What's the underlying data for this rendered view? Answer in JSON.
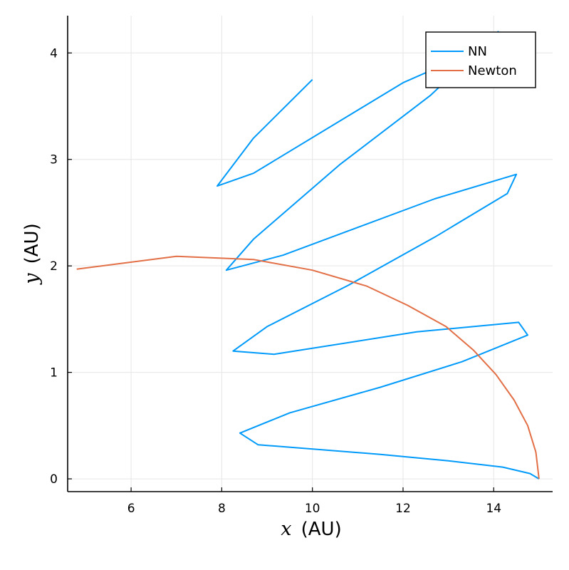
{
  "chart_data": {
    "type": "line",
    "xlabel_var": "x",
    "xlabel_unit": "(AU)",
    "ylabel_var": "y",
    "ylabel_unit": "(AU)",
    "xlim": [
      4.6,
      15.3
    ],
    "ylim": [
      -0.12,
      4.35
    ],
    "xticks": [
      6,
      8,
      10,
      12,
      14
    ],
    "yticks": [
      0,
      1,
      2,
      3,
      4
    ],
    "grid": true,
    "legend_position": "top-right",
    "series": [
      {
        "name": "NN",
        "color": "#009AFA",
        "points": [
          [
            15.0,
            0.0
          ],
          [
            14.8,
            0.05
          ],
          [
            14.2,
            0.11
          ],
          [
            13.0,
            0.17
          ],
          [
            11.5,
            0.23
          ],
          [
            8.8,
            0.32
          ],
          [
            8.4,
            0.43
          ],
          [
            9.5,
            0.62
          ],
          [
            11.5,
            0.86
          ],
          [
            13.3,
            1.1
          ],
          [
            14.75,
            1.35
          ],
          [
            14.55,
            1.47
          ],
          [
            12.3,
            1.38
          ],
          [
            9.15,
            1.17
          ],
          [
            8.25,
            1.2
          ],
          [
            9.0,
            1.43
          ],
          [
            10.8,
            1.82
          ],
          [
            12.7,
            2.27
          ],
          [
            14.3,
            2.68
          ],
          [
            14.5,
            2.86
          ],
          [
            12.7,
            2.63
          ],
          [
            9.35,
            2.1
          ],
          [
            8.1,
            1.96
          ],
          [
            8.7,
            2.25
          ],
          [
            10.6,
            2.95
          ],
          [
            12.6,
            3.6
          ],
          [
            14.1,
            4.2
          ],
          [
            13.6,
            4.02
          ],
          [
            12.0,
            3.72
          ],
          [
            8.7,
            2.87
          ],
          [
            7.9,
            2.75
          ],
          [
            8.7,
            3.2
          ],
          [
            10.0,
            3.75
          ]
        ]
      },
      {
        "name": "Newton",
        "color": "#E26F46",
        "points": [
          [
            15.0,
            0.0
          ],
          [
            14.93,
            0.25
          ],
          [
            14.75,
            0.5
          ],
          [
            14.45,
            0.74
          ],
          [
            14.05,
            0.98
          ],
          [
            13.55,
            1.21
          ],
          [
            12.95,
            1.43
          ],
          [
            12.1,
            1.63
          ],
          [
            11.2,
            1.81
          ],
          [
            10.0,
            1.96
          ],
          [
            8.7,
            2.06
          ],
          [
            7.0,
            2.09
          ],
          [
            4.8,
            1.97
          ]
        ]
      }
    ]
  }
}
